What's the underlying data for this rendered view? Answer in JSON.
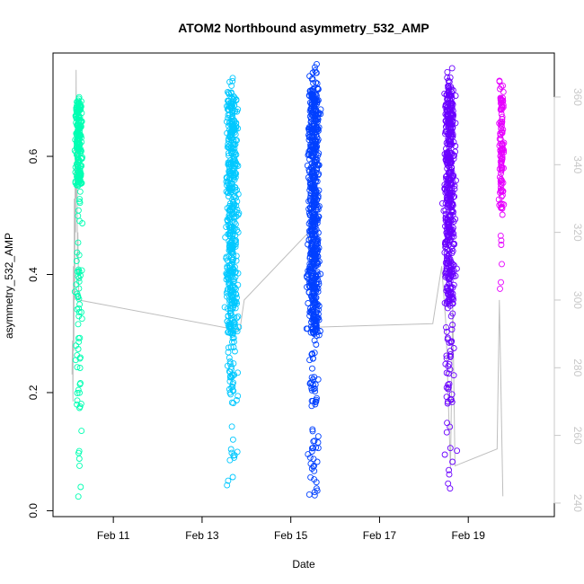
{
  "chart_data": {
    "type": "scatter",
    "title": "ATOM2 Northbound asymmetry_532_AMP",
    "xlabel": "Date",
    "ylabel": "asymmetry_532_AMP",
    "x_ticks": [
      "Feb 11",
      "Feb 13",
      "Feb 15",
      "Feb 17",
      "Feb 19"
    ],
    "x_tick_values": [
      11,
      13,
      15,
      17,
      19
    ],
    "xlim": [
      9.64,
      20.94
    ],
    "y_ticks": [
      "0.0",
      "0.2",
      "0.4",
      "0.6"
    ],
    "y_tick_values": [
      0.0,
      0.2,
      0.4,
      0.6
    ],
    "ylim": [
      -0.01,
      0.775
    ],
    "y2_ticks": [
      "240",
      "260",
      "280",
      "300",
      "320",
      "340",
      "360"
    ],
    "y2_tick_values": [
      240,
      260,
      280,
      300,
      320,
      340,
      360
    ],
    "y2lim": [
      236,
      373
    ],
    "grid": false,
    "legend": "none",
    "colors": {
      "axis": "#000000",
      "secondary_axis": "#c8c8c8",
      "line": "#bebebe",
      "background": "#ffffff"
    },
    "series": [
      {
        "date": "Feb 10",
        "color": "#00ffb2",
        "x_center": 10.22,
        "x_spread": 0.12,
        "y_min": 0.02,
        "y_max": 0.71,
        "y_dense": [
          0.55,
          0.7
        ],
        "n": 260
      },
      {
        "date": "Feb 13",
        "color": "#00c8ff",
        "x_center": 13.67,
        "x_spread": 0.22,
        "y_min": 0.03,
        "y_max": 0.735,
        "y_dense": [
          0.3,
          0.7
        ],
        "n": 520
      },
      {
        "date": "Feb 15",
        "color": "#0040ff",
        "x_center": 15.52,
        "x_spread": 0.21,
        "y_min": 0.02,
        "y_max": 0.76,
        "y_dense": [
          0.3,
          0.72
        ],
        "n": 700
      },
      {
        "date": "Feb 18",
        "color": "#6a00ff",
        "x_center": 18.58,
        "x_spread": 0.21,
        "y_min": 0.03,
        "y_max": 0.755,
        "y_dense": [
          0.35,
          0.72
        ],
        "n": 520
      },
      {
        "date": "Feb 19",
        "color": "#e600ff",
        "x_center": 19.75,
        "x_spread": 0.08,
        "y_min": 0.36,
        "y_max": 0.73,
        "y_dense": [
          0.5,
          0.7
        ],
        "n": 120
      }
    ],
    "secondary_line": [
      [
        10.07,
        278
      ],
      [
        10.08,
        288
      ],
      [
        10.09,
        270
      ],
      [
        10.1,
        310
      ],
      [
        10.11,
        285
      ],
      [
        10.12,
        330
      ],
      [
        10.13,
        300
      ],
      [
        10.14,
        350
      ],
      [
        10.15,
        320
      ],
      [
        10.16,
        368
      ],
      [
        10.17,
        330
      ],
      [
        10.18,
        345
      ],
      [
        10.19,
        312
      ],
      [
        10.2,
        320
      ],
      [
        10.22,
        300
      ],
      [
        13.85,
        291
      ],
      [
        13.95,
        300
      ],
      [
        15.4,
        320
      ],
      [
        15.6,
        292
      ],
      [
        18.2,
        293
      ],
      [
        18.4,
        310
      ],
      [
        18.5,
        292
      ],
      [
        18.55,
        270
      ],
      [
        18.6,
        250
      ],
      [
        18.65,
        300
      ],
      [
        18.7,
        251
      ],
      [
        19.65,
        256
      ],
      [
        19.7,
        300
      ],
      [
        19.78,
        242
      ]
    ]
  }
}
